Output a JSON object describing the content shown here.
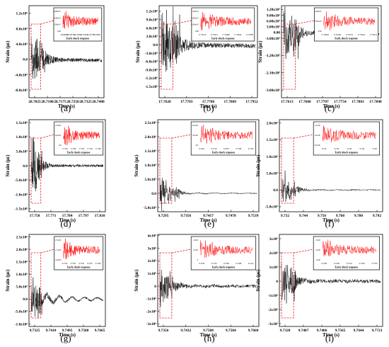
{
  "figure": {
    "inset_caption": "Early shock response",
    "colors": {
      "main": "#000000",
      "inset": "#ff0000",
      "highlight": "#e8141c"
    }
  },
  "chart_data": [
    {
      "panel": "(a)",
      "type": "line",
      "xlabel": "Time (s)",
      "ylabel": "Strain (με)",
      "xlim": [
        28.698,
        28.743
      ],
      "x_ticks": [
        "28.7025",
        "28.7100",
        "28.7175",
        "28.7250",
        "28.7325",
        "28.7400"
      ],
      "ylim": [
        -1000000.0,
        1400000.0
      ],
      "y_ticks": [
        "1.2x10⁶",
        "8.0x10⁵",
        "4.0x10⁵",
        "0.0",
        "-4.0x10⁵",
        "-8.0x10⁵"
      ],
      "y_values": [
        1200000.0,
        800000.0,
        400000.0,
        0,
        -400000.0,
        -800000.0
      ],
      "inset_x_ticks": [
        "28.69895",
        "28.70125",
        "28.70335",
        "28.70555",
        "28.70775",
        "28.70995"
      ],
      "inset_y_ticks": [
        "6.00x10⁵",
        "4.00x10⁵",
        "2.00x10⁵",
        "0.00"
      ]
    },
    {
      "panel": "(b)",
      "type": "line",
      "xlabel": "Time (s)",
      "ylabel": "Strain (με)",
      "xlim": [
        17.759,
        17.758
      ],
      "x_ticks": [
        "17.7620",
        "17.7703",
        "17.7786",
        "17.7869",
        "17.7952"
      ],
      "ylim": [
        -1900000.0,
        1400000.0
      ],
      "y_ticks": [
        "1.2x10⁶",
        "9.0x10⁵",
        "6.0x10⁵",
        "3.0x10⁵",
        "0.0",
        "-3.0x10⁵",
        "-6.0x10⁵",
        "-9.0x10⁵",
        "-1.2x10⁶",
        "-1.5x10⁶"
      ],
      "y_values": [
        1200000.0,
        900000.0,
        600000.0,
        300000.0,
        0,
        -300000.0,
        -600000.0,
        -900000.0,
        -1200000.0,
        -1500000.0
      ],
      "inset_x_ticks": [
        "17.76156",
        "17.76312",
        "17.76468",
        "17.76624",
        "17.76780"
      ],
      "inset_y_ticks": [
        "1.20x10⁵",
        "8.00x10⁵",
        "4.00x10⁵",
        "0.00"
      ]
    },
    {
      "panel": "(c)",
      "type": "line",
      "xlabel": "Time (s)",
      "ylabel": "Strain (με)",
      "xlim": [
        17.7595,
        17.786
      ],
      "x_ticks": [
        "17.7613",
        "17.7660",
        "17.7707",
        "17.7754",
        "17.7801",
        "17.7848"
      ],
      "ylim": [
        -340000.0,
        140000.0
      ],
      "y_ticks": [
        "1.20x10⁵",
        "9.00x10⁴",
        "6.00x10⁴",
        "3.00x10⁴",
        "0.00",
        "-3.00x10⁴",
        "-1.20x10⁵",
        "-2.10x10⁵",
        "-3.00x10⁵"
      ],
      "y_values": [
        120000.0,
        90000.0,
        60000.0,
        30000.0,
        0,
        -30000.0,
        -120000.0,
        -210000.0,
        -300000.0
      ],
      "inset_x_ticks": [
        "17.76040",
        "17.76108",
        "17.76176",
        "17.76244",
        "17.76312"
      ],
      "inset_y_ticks": [
        "1.40x10⁵",
        "7.00x10⁴",
        "0.00"
      ]
    },
    {
      "panel": "(d)",
      "type": "line",
      "xlabel": "Time (s)",
      "ylabel": "Strain (με)",
      "xlim": [
        17.7565,
        17.815
      ],
      "x_ticks": [
        "17.758",
        "17.771",
        "17.784",
        "17.797",
        "17.810"
      ],
      "ylim": [
        -1600000.0,
        1600000.0
      ],
      "y_ticks": [
        "1.5x10⁶",
        "1.0x10⁶",
        "5.0x10⁵",
        "0.0",
        "-5.0x10⁵",
        "-1.0x10⁶",
        "-1.5x10⁶"
      ],
      "y_values": [
        1500000.0,
        1000000.0,
        500000.0,
        0,
        -500000.0,
        -1000000.0,
        -1500000.0
      ],
      "inset_x_ticks": [
        "17.758",
        "17.760",
        "17.762",
        "17.764",
        "17.766"
      ],
      "inset_y_ticks": [
        "1.6x10⁶",
        "8.0x10⁵",
        "0.0"
      ]
    },
    {
      "panel": "(e)",
      "type": "line",
      "xlabel": "Time (s)",
      "ylabel": "Strain (με)",
      "xlim": [
        9.728,
        9.755
      ],
      "x_ticks": [
        "9.7295",
        "9.7356",
        "9.7417",
        "9.7478",
        "9.7539"
      ],
      "ylim": [
        -650000.0,
        2600000.0
      ],
      "y_ticks": [
        "2.5x10⁶",
        "2.0x10⁶",
        "1.5x10⁶",
        "1.0x10⁶",
        "5.0x10⁵",
        "0.0",
        "-5.0x10⁵"
      ],
      "y_values": [
        2500000.0,
        2000000.0,
        1500000.0,
        1000000.0,
        500000.0,
        0,
        -500000.0
      ],
      "inset_x_ticks": [
        "9.7295",
        "9.7310",
        "9.7325",
        "9.7340",
        "9.7355"
      ],
      "inset_y_ticks": [
        "2.0x10⁶",
        "1.0x10⁶",
        "0.0"
      ]
    },
    {
      "panel": "(f)",
      "type": "line",
      "xlabel": "Time (s)",
      "ylabel": "Strain (με)",
      "xlim": [
        9.73,
        9.795
      ],
      "x_ticks": [
        "9.732",
        "9.744",
        "9.756",
        "9.768",
        "9.780",
        "9.792"
      ],
      "ylim": [
        -650000.0,
        2100000.0
      ],
      "y_ticks": [
        "2.0x10⁶",
        "1.5x10⁶",
        "1.0x10⁶",
        "5.0x10⁵",
        "0.0",
        "-5.0x10⁵"
      ],
      "y_values": [
        2000000.0,
        1500000.0,
        1000000.0,
        500000.0,
        0,
        -500000.0
      ],
      "inset_x_ticks": [
        "9.732",
        "9.734",
        "9.736",
        "9.738",
        "9.740"
      ],
      "inset_y_ticks": [
        "1.5x10⁶",
        "1.0x10⁶",
        "5.0x10⁵"
      ]
    },
    {
      "panel": "(g)",
      "type": "line",
      "xlabel": "Time (s)",
      "ylabel": "Strain (με)",
      "xlim": [
        9.73,
        9.77
      ],
      "x_ticks": [
        "9.7325",
        "9.7410",
        "9.7495",
        "9.7580",
        "9.7665"
      ],
      "ylim": [
        -1100000.0,
        2600000.0
      ],
      "y_ticks": [
        "2.5x10⁶",
        "2.0x10⁶",
        "1.5x10⁶",
        "1.0x10⁶",
        "5.0x10⁵",
        "0.0",
        "-5.0x10⁵",
        "-1.0x10⁶"
      ],
      "y_values": [
        2500000.0,
        2000000.0,
        1500000.0,
        1000000.0,
        500000.0,
        0,
        -500000.0,
        -1000000.0
      ],
      "inset_x_ticks": [
        "9.7325",
        "9.7335",
        "9.7345",
        "9.7355",
        "9.7365"
      ],
      "inset_y_ticks": [
        "2.5x10⁶",
        "1.5x10⁶",
        "5.0x10⁵"
      ]
    },
    {
      "panel": "(h)",
      "type": "line",
      "xlabel": "Time (s)",
      "ylabel": "Strain (με)",
      "xlim": [
        9.733,
        9.767
      ],
      "x_ticks": [
        "9.7356",
        "9.7432",
        "9.7508",
        "9.7584",
        "9.7660"
      ],
      "ylim": [
        -3200000.0,
        4100000.0
      ],
      "y_ticks": [
        "4x10⁶",
        "3x10⁶",
        "2x10⁶",
        "1x10⁶",
        "0",
        "-1x10⁶",
        "-2x10⁶",
        "-3x10⁶"
      ],
      "y_values": [
        4000000.0,
        3000000.0,
        2000000.0,
        1000000.0,
        0,
        -1000000.0,
        -2000000.0,
        -3000000.0
      ],
      "inset_x_ticks": [
        "9.7356",
        "9.7370",
        "9.7384",
        "9.7398",
        "9.7412"
      ],
      "inset_y_ticks": [
        "4x10⁶",
        "2x10⁶",
        "0"
      ]
    },
    {
      "panel": "(i)",
      "type": "line",
      "xlabel": "Time (s)",
      "ylabel": "Strain (με)",
      "xlim": [
        9.731,
        9.776
      ],
      "x_ticks": [
        "9.7328",
        "9.7407",
        "9.7486",
        "9.7565",
        "9.7644",
        "9.7723"
      ],
      "ylim": [
        -3200000.0,
        3300000.0
      ],
      "y_ticks": [
        "3x10⁶",
        "2x10⁶",
        "1x10⁶",
        "0",
        "-1x10⁶",
        "-2x10⁶",
        "-3x10⁶"
      ],
      "y_values": [
        3000000.0,
        2000000.0,
        1000000.0,
        0,
        -1000000.0,
        -2000000.0,
        -3000000.0
      ],
      "inset_x_ticks": [
        "9.7328",
        "9.7340",
        "9.7352",
        "9.7364",
        "9.7376"
      ],
      "inset_y_ticks": [
        "3x10⁶",
        "2x10⁶",
        "1x10⁶"
      ]
    }
  ]
}
